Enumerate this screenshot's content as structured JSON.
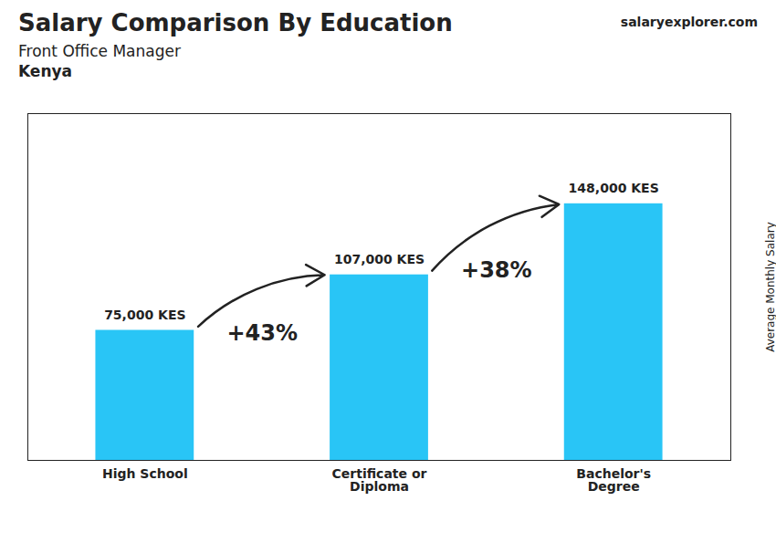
{
  "chart_data": {
    "type": "bar",
    "title": "Salary Comparison By Education",
    "subtitle": [
      "Front Office Manager",
      "Kenya"
    ],
    "watermark": [
      "salary",
      "explorer",
      ".com"
    ],
    "ylabel": "Average Monthly Salary",
    "categories": [
      "High School",
      "Certificate or\nDiploma",
      "Bachelor's\nDegree"
    ],
    "values": [
      75000,
      107000,
      148000
    ],
    "value_labels": [
      "75,000 KES",
      "107,000 KES",
      "148,000 KES"
    ],
    "data_labels": true,
    "annotations": [
      "+43%",
      "+38%"
    ],
    "color": "#29c5f6",
    "ylim": [
      0,
      200000
    ],
    "yticks": [],
    "tick_labels": "x"
  }
}
